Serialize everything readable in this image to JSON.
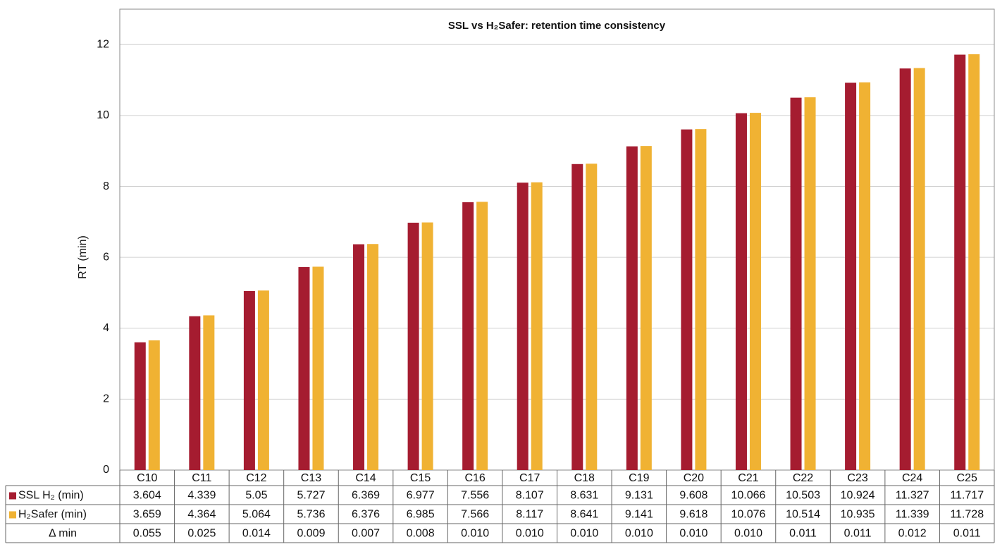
{
  "chart_data": {
    "type": "bar",
    "title": "SSL vs H₂Safer: retention time consistency",
    "y_label": "RT (min)",
    "categories": [
      "C10",
      "C11",
      "C12",
      "C13",
      "C14",
      "C15",
      "C16",
      "C17",
      "C18",
      "C19",
      "C20",
      "C21",
      "C22",
      "C23",
      "C24",
      "C25"
    ],
    "series": [
      {
        "name": "SSL H₂ (min)",
        "color": "#a51c30",
        "values": [
          3.604,
          4.339,
          5.05,
          5.727,
          6.369,
          6.977,
          7.556,
          8.107,
          8.631,
          9.131,
          9.608,
          10.066,
          10.503,
          10.924,
          11.327,
          11.717
        ]
      },
      {
        "name": "H₂Safer (min)",
        "color": "#f0b233",
        "values": [
          3.659,
          4.364,
          5.064,
          5.736,
          6.376,
          6.985,
          7.566,
          8.117,
          8.641,
          9.141,
          9.618,
          10.076,
          10.514,
          10.935,
          11.339,
          11.728
        ]
      }
    ],
    "delta": {
      "name": "Δ min",
      "values": [
        0.055,
        0.025,
        0.014,
        0.009,
        0.007,
        0.008,
        0.01,
        0.01,
        0.01,
        0.01,
        0.01,
        0.01,
        0.011,
        0.011,
        0.012,
        0.011
      ],
      "value_labels": [
        "0.055",
        "0.025",
        "0.014",
        "0.009",
        "0.007",
        "0.008",
        "0.010",
        "0.010",
        "0.010",
        "0.010",
        "0.010",
        "0.010",
        "0.011",
        "0.011",
        "0.012",
        "0.011"
      ]
    },
    "ylim": [
      0,
      13
    ],
    "yticks": [
      0,
      2,
      4,
      6,
      8,
      10,
      12
    ],
    "grid": true
  }
}
